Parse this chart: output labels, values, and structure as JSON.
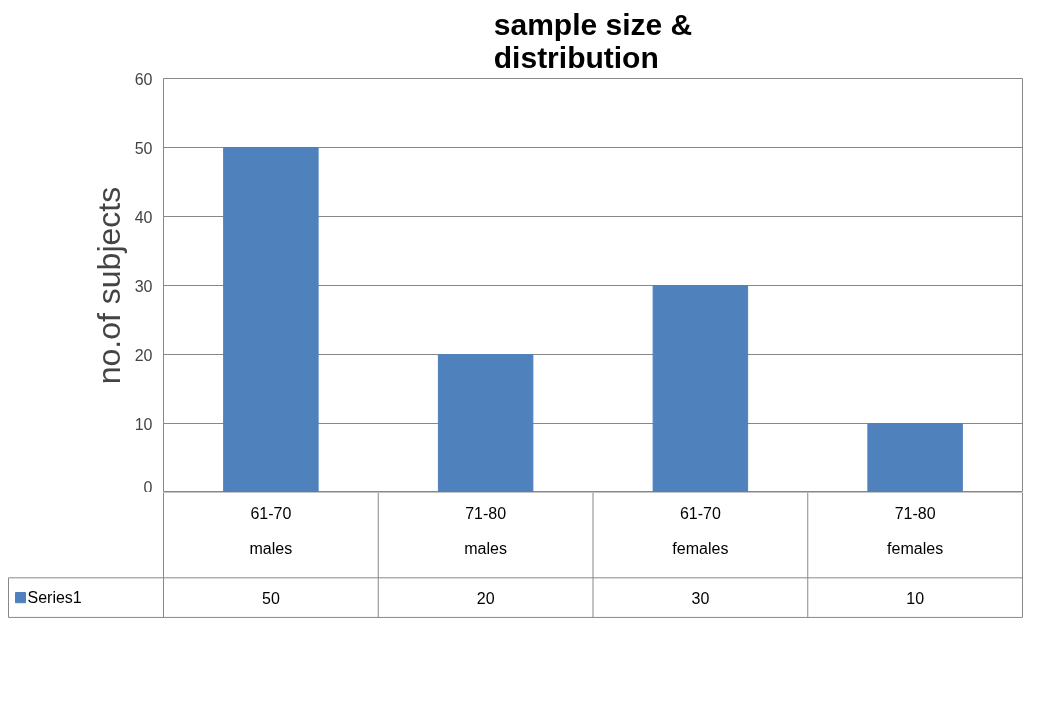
{
  "chart_data": {
    "type": "bar",
    "title": "sample size &\ndistribution",
    "ylabel": "no.of subjects",
    "categories": [
      "61-70\nmales",
      "71-80\nmales",
      "61-70\nfemales",
      "71-80\nfemales"
    ],
    "series": [
      {
        "name": "Series1",
        "color": "#4f81bd",
        "values": [
          50,
          20,
          30,
          10
        ]
      }
    ],
    "ylim": [
      0,
      60
    ],
    "yticks": [
      0,
      10,
      20,
      30,
      40,
      50,
      60
    ],
    "grid": "y",
    "legend": "bottom left",
    "data_labels": true
  }
}
